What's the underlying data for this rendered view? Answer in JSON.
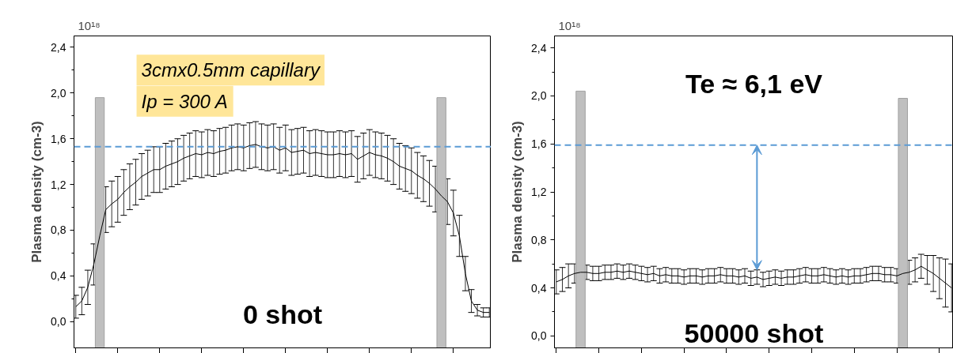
{
  "chart_data": [
    {
      "type": "line",
      "ylabel": "Plasma density (cm-3)",
      "categories": [
        null,
        null,
        null,
        null,
        null,
        null,
        null,
        null,
        null,
        null,
        null,
        null,
        null,
        null,
        null,
        null,
        null,
        null,
        null,
        null,
        null,
        null,
        null,
        null,
        null,
        null,
        null,
        null,
        null,
        null,
        null,
        null,
        null,
        null,
        null,
        null,
        null,
        null,
        null,
        null,
        null,
        null,
        null,
        null,
        null,
        null,
        null,
        null,
        null,
        null,
        null,
        null,
        null,
        null,
        null,
        null,
        null,
        null,
        null,
        null,
        null,
        null,
        null,
        null,
        null,
        null,
        null,
        null,
        null,
        null
      ],
      "series": [
        {
          "color": "#000000",
          "values": [
            0.13,
            0.18,
            0.3,
            0.5,
            0.75,
            0.98,
            1.03,
            1.07,
            1.13,
            1.18,
            1.22,
            1.27,
            1.3,
            1.33,
            1.33,
            1.36,
            1.38,
            1.4,
            1.43,
            1.45,
            1.47,
            1.46,
            1.48,
            1.47,
            1.49,
            1.5,
            1.52,
            1.53,
            1.52,
            1.54,
            1.55,
            1.53,
            1.52,
            1.53,
            1.5,
            1.52,
            1.48,
            1.49,
            1.5,
            1.47,
            1.48,
            1.47,
            1.46,
            1.46,
            1.47,
            1.46,
            1.47,
            1.42,
            1.45,
            1.48,
            1.46,
            1.45,
            1.43,
            1.4,
            1.36,
            1.34,
            1.32,
            1.28,
            1.25,
            1.21,
            1.16,
            1.1,
            1.05,
            0.95,
            0.75,
            0.42,
            0.18,
            0.1,
            0.08,
            0.08
          ],
          "errors": [
            0.1,
            0.12,
            0.15,
            0.18,
            null,
            0.2,
            0.2,
            0.2,
            0.2,
            0.2,
            0.2,
            0.2,
            0.2,
            0.2,
            0.2,
            0.2,
            0.2,
            0.2,
            0.2,
            0.2,
            0.2,
            0.2,
            0.2,
            0.2,
            0.2,
            0.2,
            0.2,
            0.2,
            0.2,
            0.2,
            0.2,
            0.2,
            0.2,
            0.2,
            0.2,
            0.2,
            0.2,
            0.2,
            0.2,
            0.2,
            0.2,
            0.2,
            0.2,
            0.2,
            0.2,
            0.2,
            0.2,
            0.2,
            0.2,
            0.2,
            0.2,
            0.2,
            0.2,
            0.2,
            0.2,
            0.2,
            0.2,
            0.2,
            0.2,
            0.2,
            0.2,
            null,
            0.2,
            0.2,
            0.18,
            0.15,
            0.1,
            0.05,
            0.04,
            0.04
          ]
        },
        {
          "type": "bar",
          "color": "#bfbfbf",
          "values": [
            null,
            null,
            null,
            null,
            2.19,
            null,
            null,
            null,
            null,
            null,
            null,
            null,
            null,
            null,
            null,
            null,
            null,
            null,
            null,
            null,
            null,
            null,
            null,
            null,
            null,
            null,
            null,
            null,
            null,
            null,
            null,
            null,
            null,
            null,
            null,
            null,
            null,
            null,
            null,
            null,
            null,
            null,
            null,
            null,
            null,
            null,
            null,
            null,
            null,
            null,
            null,
            null,
            null,
            null,
            null,
            null,
            null,
            null,
            null,
            null,
            null,
            2.19,
            null,
            null,
            null,
            null,
            null,
            null,
            null,
            null
          ],
          "base": [
            null,
            null,
            null,
            null,
            -0.23,
            null,
            null,
            null,
            null,
            null,
            null,
            null,
            null,
            null,
            null,
            null,
            null,
            null,
            null,
            null,
            null,
            null,
            null,
            null,
            null,
            null,
            null,
            null,
            null,
            null,
            null,
            null,
            null,
            null,
            null,
            null,
            null,
            null,
            null,
            null,
            null,
            null,
            null,
            null,
            null,
            null,
            null,
            null,
            null,
            null,
            null,
            null,
            null,
            null,
            null,
            null,
            null,
            null,
            null,
            null,
            null,
            -0.23,
            null,
            null,
            null,
            null,
            null,
            null,
            null,
            null
          ]
        }
      ],
      "ylim": [
        -0.23,
        2.5
      ],
      "yticks": [
        {
          "value": 0,
          "label": "0,0"
        },
        {
          "value": 0.2,
          "label": null
        },
        {
          "value": 0.4,
          "label": "0,4"
        },
        {
          "value": 0.6,
          "label": null
        },
        {
          "value": 0.8,
          "label": "0,8"
        },
        {
          "value": 1.0,
          "label": null
        },
        {
          "value": 1.2,
          "label": "1,2"
        },
        {
          "value": 1.4,
          "label": null
        },
        {
          "value": 1.6,
          "label": "1,6"
        },
        {
          "value": 1.8,
          "label": null
        },
        {
          "value": 2.0,
          "label": "2,0"
        },
        {
          "value": 2.2,
          "label": null
        },
        {
          "value": 2.4,
          "label": "2,4"
        }
      ],
      "ref_lines": [
        {
          "axis": "y",
          "value": 1.53,
          "color": "#5b9bd5",
          "line_style": "dashed"
        }
      ],
      "annotations": [
        "10¹⁸",
        "3cmx0.5mm capillary",
        "Ip = 300 A",
        "0 shot"
      ],
      "tick_labels": "y",
      "grid": false
    },
    {
      "type": "line",
      "ylabel": "Plasma density (cm-3)",
      "categories": [
        null,
        null,
        null,
        null,
        null,
        null,
        null,
        null,
        null,
        null,
        null,
        null,
        null,
        null,
        null,
        null,
        null,
        null,
        null,
        null,
        null,
        null,
        null,
        null,
        null,
        null,
        null,
        null,
        null,
        null,
        null,
        null,
        null,
        null,
        null,
        null,
        null,
        null,
        null,
        null,
        null,
        null,
        null,
        null,
        null,
        null,
        null,
        null,
        null,
        null,
        null,
        null,
        null,
        null,
        null,
        null,
        null,
        null,
        null,
        null,
        null,
        null,
        null,
        null,
        null,
        null
      ],
      "series": [
        {
          "color": "#000000",
          "values": [
            0.45,
            0.47,
            0.5,
            0.52,
            0.53,
            0.53,
            0.52,
            0.52,
            0.53,
            0.53,
            0.54,
            0.53,
            0.54,
            0.53,
            0.52,
            0.51,
            0.52,
            0.5,
            0.51,
            0.5,
            0.5,
            0.49,
            0.5,
            0.5,
            0.49,
            0.5,
            0.5,
            0.51,
            0.5,
            0.5,
            0.49,
            0.5,
            0.48,
            0.49,
            0.47,
            0.48,
            0.49,
            0.48,
            0.49,
            0.49,
            0.5,
            0.51,
            0.5,
            0.5,
            0.51,
            0.5,
            0.49,
            0.5,
            0.49,
            0.5,
            0.5,
            0.51,
            0.52,
            0.52,
            0.51,
            0.51,
            0.5,
            0.52,
            0.53,
            0.55,
            0.58,
            0.55,
            0.52,
            0.48,
            0.44,
            0.4
          ],
          "errors": [
            0.1,
            0.1,
            0.1,
            0.08,
            null,
            0.06,
            0.06,
            0.06,
            0.06,
            0.06,
            0.06,
            0.06,
            0.06,
            0.06,
            0.06,
            0.06,
            0.06,
            0.06,
            0.06,
            0.06,
            0.06,
            0.06,
            0.06,
            0.06,
            0.06,
            0.06,
            0.06,
            0.06,
            0.06,
            0.06,
            0.06,
            0.06,
            0.06,
            0.06,
            0.06,
            0.06,
            0.06,
            0.06,
            0.06,
            0.06,
            0.06,
            0.06,
            0.06,
            0.06,
            0.06,
            0.06,
            0.06,
            0.06,
            0.06,
            0.06,
            0.06,
            0.06,
            0.06,
            0.06,
            0.06,
            0.06,
            0.06,
            null,
            0.1,
            0.1,
            0.1,
            0.12,
            0.15,
            0.17,
            0.2,
            0.2
          ]
        },
        {
          "type": "bar",
          "color": "#bfbfbf",
          "values": [
            null,
            null,
            null,
            null,
            2.14,
            null,
            null,
            null,
            null,
            null,
            null,
            null,
            null,
            null,
            null,
            null,
            null,
            null,
            null,
            null,
            null,
            null,
            null,
            null,
            null,
            null,
            null,
            null,
            null,
            null,
            null,
            null,
            null,
            null,
            null,
            null,
            null,
            null,
            null,
            null,
            null,
            null,
            null,
            null,
            null,
            null,
            null,
            null,
            null,
            null,
            null,
            null,
            null,
            null,
            null,
            null,
            null,
            2.08,
            null,
            null,
            null,
            null,
            null,
            null,
            null,
            null
          ],
          "base": [
            null,
            null,
            null,
            null,
            -0.1,
            null,
            null,
            null,
            null,
            null,
            null,
            null,
            null,
            null,
            null,
            null,
            null,
            null,
            null,
            null,
            null,
            null,
            null,
            null,
            null,
            null,
            null,
            null,
            null,
            null,
            null,
            null,
            null,
            null,
            null,
            null,
            null,
            null,
            null,
            null,
            null,
            null,
            null,
            null,
            null,
            null,
            null,
            null,
            null,
            null,
            null,
            null,
            null,
            null,
            null,
            null,
            null,
            -0.1,
            null,
            null,
            null,
            null,
            null,
            null,
            null,
            null
          ]
        }
      ],
      "ylim": [
        -0.1,
        2.5
      ],
      "yticks": [
        {
          "value": 0,
          "label": "0,0"
        },
        {
          "value": 0.2,
          "label": null
        },
        {
          "value": 0.4,
          "label": "0,4"
        },
        {
          "value": 0.6,
          "label": null
        },
        {
          "value": 0.8,
          "label": "0,8"
        },
        {
          "value": 1.0,
          "label": null
        },
        {
          "value": 1.2,
          "label": "1,2"
        },
        {
          "value": 1.4,
          "label": null
        },
        {
          "value": 1.6,
          "label": "1,6"
        },
        {
          "value": 1.8,
          "label": null
        },
        {
          "value": 2.0,
          "label": "2,0"
        },
        {
          "value": 2.2,
          "label": null
        },
        {
          "value": 2.4,
          "label": "2,4"
        }
      ],
      "ref_lines": [
        {
          "axis": "y",
          "value": 1.59,
          "color": "#5b9bd5",
          "line_style": "dashed"
        }
      ],
      "annotations": [
        "10¹⁸",
        "Te ≈ 6,1 eV",
        "50000 shot"
      ],
      "tick_labels": "y",
      "grid": false
    }
  ]
}
